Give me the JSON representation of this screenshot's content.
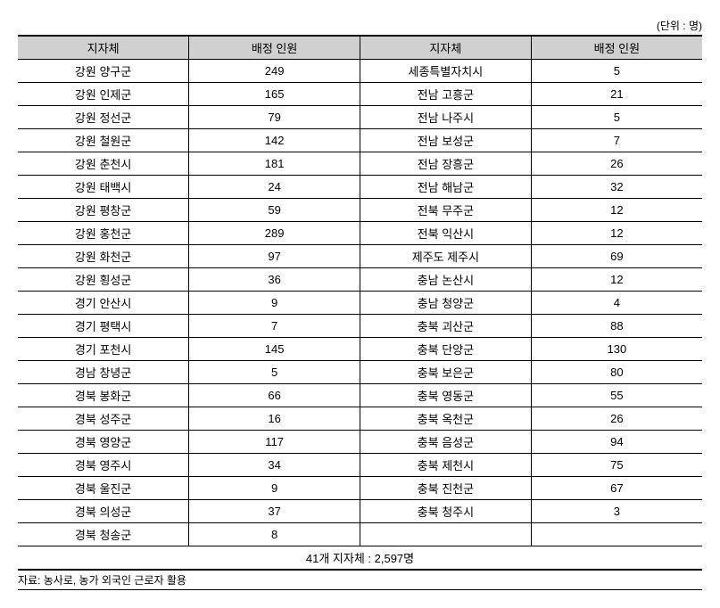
{
  "unit_label": "(단위 : 명)",
  "headers": {
    "region": "지자체",
    "allocation": "배정 인원"
  },
  "rows": [
    {
      "r1": "강원 양구군",
      "v1": "249",
      "r2": "세종특별자치시",
      "v2": "5"
    },
    {
      "r1": "강원 인제군",
      "v1": "165",
      "r2": "전남 고흥군",
      "v2": "21"
    },
    {
      "r1": "강원 정선군",
      "v1": "79",
      "r2": "전남 나주시",
      "v2": "5"
    },
    {
      "r1": "강원 철원군",
      "v1": "142",
      "r2": "전남 보성군",
      "v2": "7"
    },
    {
      "r1": "강원 춘천시",
      "v1": "181",
      "r2": "전남 장흥군",
      "v2": "26"
    },
    {
      "r1": "강원 태백시",
      "v1": "24",
      "r2": "전남 해남군",
      "v2": "32"
    },
    {
      "r1": "강원 평창군",
      "v1": "59",
      "r2": "전북 무주군",
      "v2": "12"
    },
    {
      "r1": "강원 홍천군",
      "v1": "289",
      "r2": "전북 익산시",
      "v2": "12"
    },
    {
      "r1": "강원 화천군",
      "v1": "97",
      "r2": "제주도 제주시",
      "v2": "69"
    },
    {
      "r1": "강원 횡성군",
      "v1": "36",
      "r2": "충남 논산시",
      "v2": "12"
    },
    {
      "r1": "경기 안산시",
      "v1": "9",
      "r2": "충남 청양군",
      "v2": "4"
    },
    {
      "r1": "경기 평택시",
      "v1": "7",
      "r2": "충북 괴산군",
      "v2": "88"
    },
    {
      "r1": "경기 포천시",
      "v1": "145",
      "r2": "충북 단양군",
      "v2": "130"
    },
    {
      "r1": "경남 창녕군",
      "v1": "5",
      "r2": "충북 보은군",
      "v2": "80"
    },
    {
      "r1": "경북 봉화군",
      "v1": "66",
      "r2": "충북 영동군",
      "v2": "55"
    },
    {
      "r1": "경북 성주군",
      "v1": "16",
      "r2": "충북 옥천군",
      "v2": "26"
    },
    {
      "r1": "경북 영양군",
      "v1": "117",
      "r2": "충북 음성군",
      "v2": "94"
    },
    {
      "r1": "경북 영주시",
      "v1": "34",
      "r2": "충북 제천시",
      "v2": "75"
    },
    {
      "r1": "경북 울진군",
      "v1": "9",
      "r2": "충북 진천군",
      "v2": "67"
    },
    {
      "r1": "경북 의성군",
      "v1": "37",
      "r2": "충북 청주시",
      "v2": "3"
    },
    {
      "r1": "경북 청송군",
      "v1": "8",
      "r2": "",
      "v2": ""
    }
  ],
  "total": "41개 지자체 : 2,597명",
  "source": "자료: 농사로, 농가 외국인 근로자 활용"
}
